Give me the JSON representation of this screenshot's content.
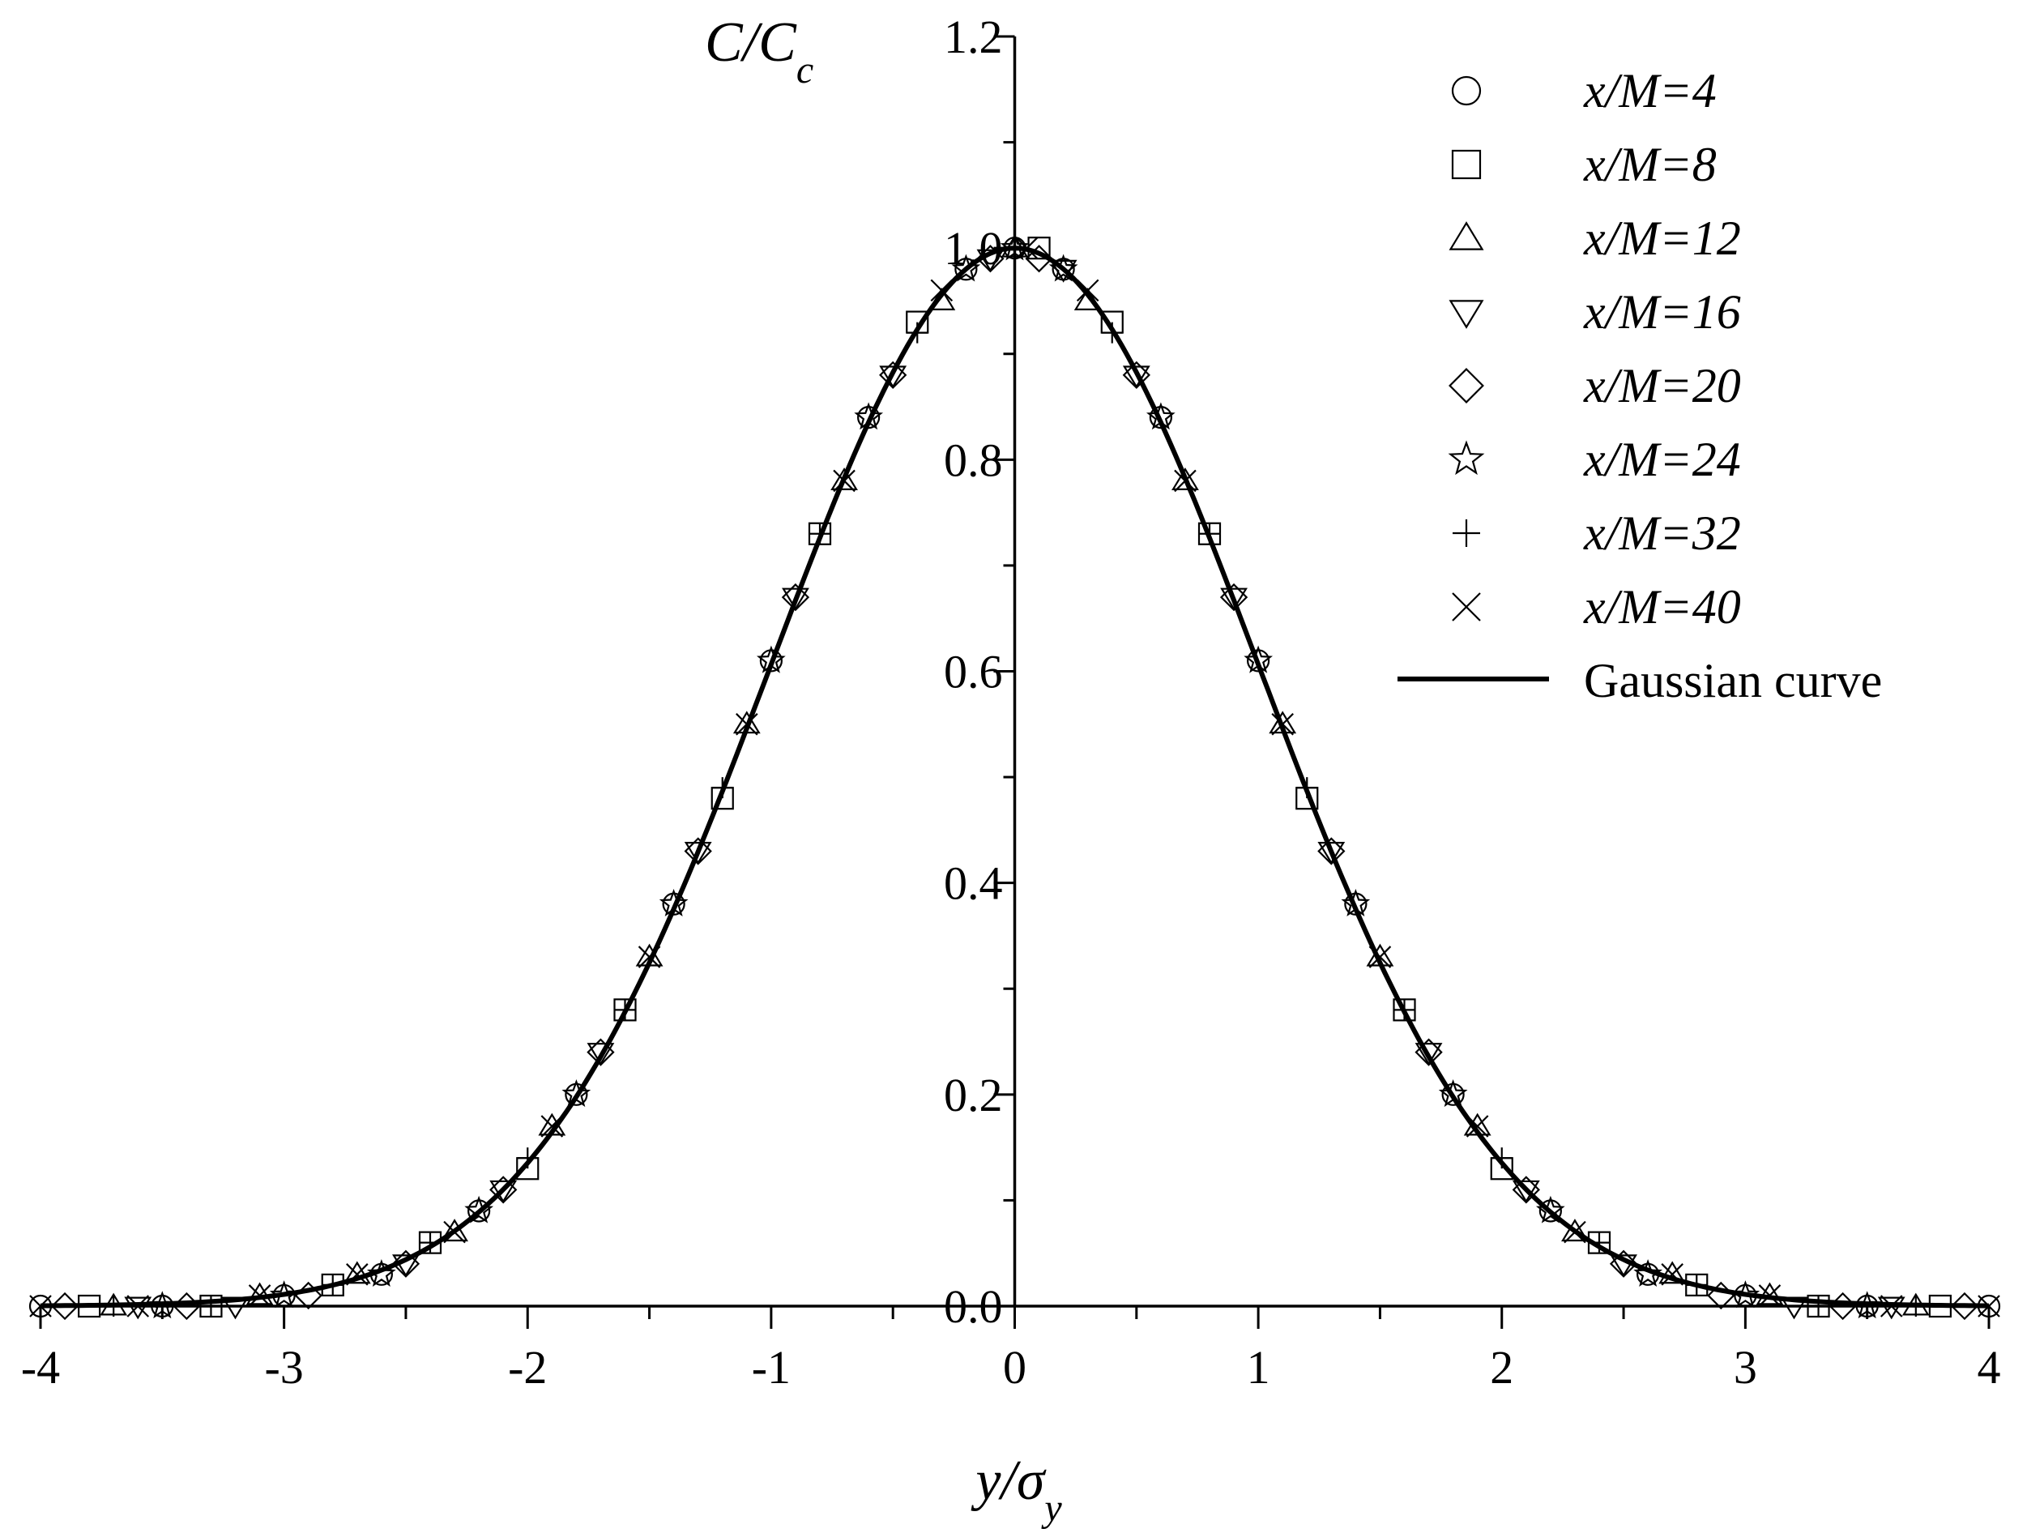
{
  "chart_data": {
    "type": "scatter",
    "title": "",
    "xlabel": "y/σ_y",
    "ylabel": "C/C_c",
    "xlim": [
      -4,
      4
    ],
    "ylim": [
      0,
      1.2
    ],
    "x_ticks": [
      -4,
      -3,
      -2,
      -1,
      0,
      1,
      2,
      3,
      4
    ],
    "x_tick_labels": [
      "-4",
      "-3",
      "-2",
      "-1",
      "0",
      "1",
      "2",
      "3",
      "4"
    ],
    "y_ticks": [
      0.0,
      0.2,
      0.4,
      0.6,
      0.8,
      1.0,
      1.2
    ],
    "y_tick_labels": [
      "0.0",
      "0.2",
      "0.4",
      "0.6",
      "0.8",
      "1.0",
      "1.2"
    ],
    "grid": false,
    "legend_position": "top-right",
    "series": [
      {
        "name": "x/M=4",
        "marker": "circle",
        "x": [
          -4.0,
          -3.5,
          -3.0,
          -2.6,
          -2.2,
          -1.8,
          -1.4,
          -1.0,
          -0.6,
          -0.2,
          0.0,
          0.2,
          0.6,
          1.0,
          1.4,
          1.8,
          2.2,
          2.6,
          3.0,
          3.5,
          4.0
        ],
        "y": [
          0.0,
          0.0,
          0.01,
          0.03,
          0.09,
          0.2,
          0.38,
          0.61,
          0.84,
          0.98,
          1.0,
          0.98,
          0.84,
          0.61,
          0.38,
          0.2,
          0.09,
          0.03,
          0.01,
          0.0,
          0.0
        ]
      },
      {
        "name": "x/M=8",
        "marker": "square",
        "x": [
          -3.8,
          -3.3,
          -2.8,
          -2.4,
          -2.0,
          -1.6,
          -1.2,
          -0.8,
          -0.4,
          0.1,
          0.4,
          0.8,
          1.2,
          1.6,
          2.0,
          2.4,
          2.8,
          3.3,
          3.8
        ],
        "y": [
          0.0,
          0.0,
          0.02,
          0.06,
          0.13,
          0.28,
          0.48,
          0.73,
          0.93,
          1.0,
          0.93,
          0.73,
          0.48,
          0.28,
          0.13,
          0.06,
          0.02,
          0.0,
          0.0
        ]
      },
      {
        "name": "x/M=12",
        "marker": "triangle-up",
        "x": [
          -3.7,
          -3.1,
          -2.7,
          -2.3,
          -1.9,
          -1.5,
          -1.1,
          -0.7,
          -0.3,
          0.0,
          0.3,
          0.7,
          1.1,
          1.5,
          1.9,
          2.3,
          2.7,
          3.1,
          3.7
        ],
        "y": [
          0.0,
          0.01,
          0.03,
          0.07,
          0.17,
          0.33,
          0.55,
          0.78,
          0.95,
          1.0,
          0.95,
          0.78,
          0.55,
          0.33,
          0.17,
          0.07,
          0.03,
          0.01,
          0.0
        ]
      },
      {
        "name": "x/M=16",
        "marker": "triangle-down",
        "x": [
          -3.6,
          -3.2,
          -2.5,
          -2.1,
          -1.7,
          -1.3,
          -0.9,
          -0.5,
          -0.1,
          0.2,
          0.5,
          0.9,
          1.3,
          1.7,
          2.1,
          2.5,
          3.2,
          3.6
        ],
        "y": [
          0.0,
          0.0,
          0.04,
          0.11,
          0.24,
          0.43,
          0.67,
          0.88,
          0.99,
          0.98,
          0.88,
          0.67,
          0.43,
          0.24,
          0.11,
          0.04,
          0.0,
          0.0
        ]
      },
      {
        "name": "x/M=20",
        "marker": "diamond",
        "x": [
          -3.9,
          -3.4,
          -2.9,
          -2.5,
          -2.1,
          -1.7,
          -1.3,
          -0.9,
          -0.5,
          -0.1,
          0.1,
          0.5,
          0.9,
          1.3,
          1.7,
          2.1,
          2.5,
          2.9,
          3.4,
          3.9
        ],
        "y": [
          0.0,
          0.0,
          0.01,
          0.04,
          0.11,
          0.24,
          0.43,
          0.67,
          0.88,
          0.99,
          0.99,
          0.88,
          0.67,
          0.43,
          0.24,
          0.11,
          0.04,
          0.01,
          0.0,
          0.0
        ]
      },
      {
        "name": "x/M=24",
        "marker": "star",
        "x": [
          -3.5,
          -3.0,
          -2.6,
          -2.2,
          -1.8,
          -1.4,
          -1.0,
          -0.6,
          -0.2,
          0.0,
          0.2,
          0.6,
          1.0,
          1.4,
          1.8,
          2.2,
          2.6,
          3.0,
          3.5
        ],
        "y": [
          0.0,
          0.01,
          0.03,
          0.09,
          0.2,
          0.38,
          0.61,
          0.84,
          0.98,
          1.0,
          0.98,
          0.84,
          0.61,
          0.38,
          0.2,
          0.09,
          0.03,
          0.01,
          0.0
        ]
      },
      {
        "name": "x/M=32",
        "marker": "plus",
        "x": [
          -3.7,
          -3.3,
          -2.8,
          -2.4,
          -2.0,
          -1.6,
          -1.2,
          -0.8,
          -0.4,
          0.0,
          0.4,
          0.8,
          1.2,
          1.6,
          2.0,
          2.4,
          2.8,
          3.3,
          3.7
        ],
        "y": [
          0.0,
          0.0,
          0.02,
          0.06,
          0.14,
          0.28,
          0.49,
          0.73,
          0.92,
          1.0,
          0.92,
          0.73,
          0.49,
          0.28,
          0.14,
          0.06,
          0.02,
          0.0,
          0.0
        ]
      },
      {
        "name": "x/M=40",
        "marker": "cross",
        "x": [
          -4.0,
          -3.6,
          -3.1,
          -2.7,
          -2.3,
          -1.9,
          -1.5,
          -1.1,
          -0.7,
          -0.3,
          0.05,
          0.3,
          0.7,
          1.1,
          1.5,
          1.9,
          2.3,
          2.7,
          3.1,
          3.6,
          4.0
        ],
        "y": [
          0.0,
          0.0,
          0.01,
          0.03,
          0.07,
          0.17,
          0.33,
          0.55,
          0.78,
          0.96,
          1.0,
          0.96,
          0.78,
          0.55,
          0.33,
          0.17,
          0.07,
          0.03,
          0.01,
          0.0,
          0.0
        ]
      },
      {
        "name": "Gaussian curve",
        "type": "line",
        "function": "exp(-x^2/2)",
        "x_range": [
          -4,
          4
        ]
      }
    ]
  }
}
